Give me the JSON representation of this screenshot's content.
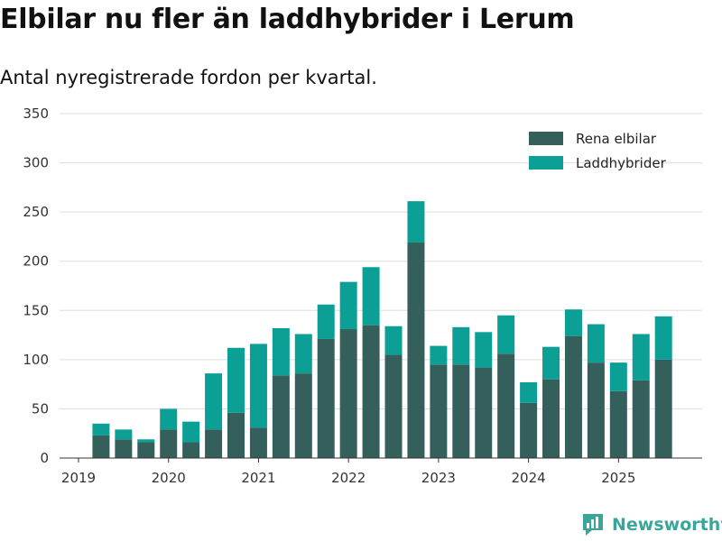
{
  "title": "Elbilar nu fler än laddhybrider i Lerum",
  "subtitle": "Antal nyregistrerade fordon per kvartal.",
  "brand": {
    "name": "Newsworthy",
    "color": "#3aa59b"
  },
  "chart_data": {
    "type": "bar",
    "stacked": true,
    "categories": [
      "2019-Q2",
      "2019-Q3",
      "2019-Q4",
      "2020-Q1",
      "2020-Q2",
      "2020-Q3",
      "2020-Q4",
      "2021-Q1",
      "2021-Q2",
      "2021-Q3",
      "2021-Q4",
      "2022-Q1",
      "2022-Q2",
      "2022-Q3",
      "2022-Q4",
      "2023-Q1",
      "2023-Q2",
      "2023-Q3",
      "2023-Q4",
      "2024-Q1",
      "2024-Q2",
      "2024-Q3",
      "2024-Q4",
      "2025-Q1",
      "2025-Q2",
      "2025-Q3"
    ],
    "series": [
      {
        "name": "Rena elbilar",
        "color": "#355f5b",
        "values": [
          23,
          19,
          16,
          29,
          16,
          29,
          46,
          31,
          84,
          86,
          121,
          131,
          135,
          105,
          219,
          95,
          95,
          92,
          106,
          56,
          80,
          124,
          97,
          68,
          79,
          100
        ]
      },
      {
        "name": "Laddhybrider",
        "color": "#0b9f95",
        "values": [
          12,
          10,
          3,
          21,
          21,
          57,
          66,
          85,
          48,
          40,
          35,
          48,
          59,
          29,
          42,
          19,
          38,
          36,
          39,
          21,
          33,
          27,
          39,
          29,
          47,
          44
        ]
      }
    ],
    "x_tick_labels": [
      "2019",
      "2020",
      "2021",
      "2022",
      "2023",
      "2024",
      "2025"
    ],
    "y_ticks": [
      0,
      50,
      100,
      150,
      200,
      250,
      300,
      350
    ],
    "ylim": [
      0,
      350
    ],
    "xlabel": "",
    "ylabel": "",
    "grid": true,
    "legend": "top-right"
  }
}
